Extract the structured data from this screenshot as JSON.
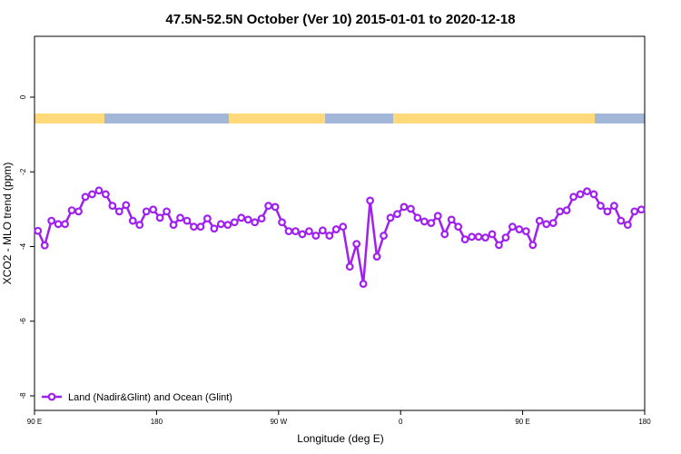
{
  "chart_data": {
    "type": "line",
    "title": "47.5N-52.5N October (Ver 10)   2015-01-01 to 2020-12-18",
    "x_label": "Longitude (deg E)",
    "y_label": "XCO2 - MLO trend (ppm)",
    "xlim": [
      90,
      540
    ],
    "ylim": [
      -8.39,
      1.63
    ],
    "xticks": [
      {
        "value": 90,
        "label": "90 E"
      },
      180,
      {
        "value": 270,
        "label": "90 W"
      },
      {
        "value": 360,
        "label": "0"
      },
      {
        "value": 450,
        "label": "90 E"
      },
      {
        "value": 540,
        "label": "180"
      }
    ],
    "yticks": [
      0,
      -2,
      -4,
      -6,
      -8
    ],
    "legend_position": "bottom-left",
    "x": [
      92.5,
      97.5,
      102.5,
      107.5,
      112.5,
      117.5,
      122.5,
      127.5,
      132.5,
      137.5,
      142.5,
      147.5,
      152.5,
      157.5,
      162.5,
      167.5,
      172.5,
      177.5,
      182.5,
      187.5,
      192.5,
      197.5,
      202.5,
      207.5,
      212.5,
      217.5,
      222.5,
      227.5,
      232.5,
      237.5,
      242.5,
      247.5,
      252.5,
      257.5,
      262.5,
      267.5,
      272.5,
      277.5,
      282.5,
      287.5,
      292.5,
      297.5,
      302.5,
      307.5,
      312.5,
      317.5,
      322.5,
      327.5,
      332.5,
      337.5,
      342.5,
      347.5,
      352.5,
      357.5,
      362.5,
      367.5,
      372.5,
      377.5,
      382.5,
      387.5,
      392.5,
      397.5,
      402.5,
      407.5,
      412.5,
      417.5,
      422.5,
      427.5,
      432.5,
      437.5,
      442.5,
      447.5,
      452.5,
      457.5,
      462.5,
      467.5,
      472.5,
      477.5,
      482.5,
      487.5,
      492.5,
      497.5,
      502.5,
      507.5,
      512.5,
      517.5,
      522.5,
      527.5,
      532.5,
      537.5
    ],
    "series": [
      {
        "name": "Land (Nadir&Glint) and Ocean (Glint)",
        "color": "#a020f0",
        "values": [
          -3.58,
          -3.97,
          -3.31,
          -3.4,
          -3.4,
          -3.03,
          -3.06,
          -2.67,
          -2.6,
          -2.5,
          -2.6,
          -2.91,
          -3.06,
          -2.89,
          -3.31,
          -3.42,
          -3.06,
          -3.01,
          -3.23,
          -3.06,
          -3.42,
          -3.23,
          -3.31,
          -3.47,
          -3.47,
          -3.25,
          -3.52,
          -3.4,
          -3.42,
          -3.35,
          -3.23,
          -3.28,
          -3.35,
          -3.25,
          -2.91,
          -2.94,
          -3.35,
          -3.59,
          -3.59,
          -3.67,
          -3.59,
          -3.71,
          -3.57,
          -3.71,
          -3.54,
          -3.47,
          -4.54,
          -3.93,
          -5.0,
          -2.77,
          -4.27,
          -3.71,
          -3.23,
          -3.13,
          -2.94,
          -2.99,
          -3.23,
          -3.33,
          -3.37,
          -3.18,
          -3.67,
          -3.28,
          -3.47,
          -3.81,
          -3.74,
          -3.74,
          -3.76,
          -3.67,
          -3.96,
          -3.76,
          -3.47,
          -3.54,
          -3.59,
          -3.96,
          -3.31,
          -3.4,
          -3.37,
          -3.06,
          -3.03,
          -2.67,
          -2.6,
          -2.52,
          -2.6,
          -2.91,
          -3.06,
          -2.91,
          -3.31,
          -3.42,
          -3.06,
          -3.01
        ]
      }
    ]
  }
}
